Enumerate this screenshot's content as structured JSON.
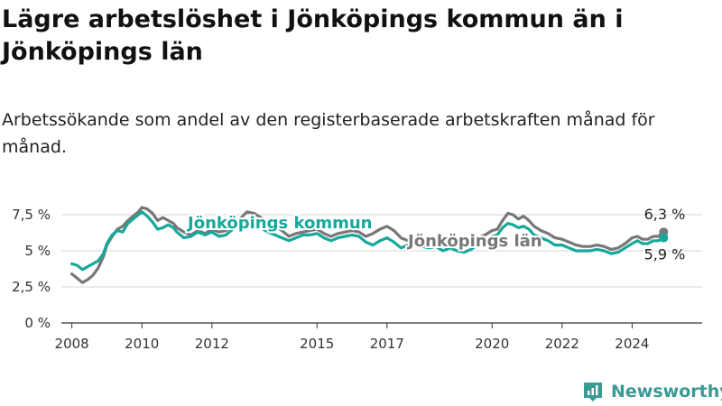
{
  "title": "Lägre arbetslöshet i Jönköpings kommun än i Jönköpings län",
  "subtitle": "Arbetssökande som andel av den registerbaserade arbetskraften månad för månad.",
  "brand": {
    "name": "Newsworthy"
  },
  "chart_data": {
    "type": "line",
    "ylim": [
      0,
      8.5
    ],
    "xlim": [
      2007.7,
      2026.0
    ],
    "y_ticks": [
      {
        "value": 0,
        "label": "0 %"
      },
      {
        "value": 2.5,
        "label": "2,5 %"
      },
      {
        "value": 5,
        "label": "5 %"
      },
      {
        "value": 7.5,
        "label": "7,5 %"
      }
    ],
    "x_ticks": [
      {
        "value": 2008,
        "label": "2008"
      },
      {
        "value": 2010,
        "label": "2010"
      },
      {
        "value": 2012,
        "label": "2012"
      },
      {
        "value": 2015,
        "label": "2015"
      },
      {
        "value": 2017,
        "label": "2017"
      },
      {
        "value": 2020,
        "label": "2020"
      },
      {
        "value": 2022,
        "label": "2022"
      },
      {
        "value": 2024,
        "label": "2024"
      }
    ],
    "grid": true,
    "series": [
      {
        "name": "Jönköpings län",
        "color": "#777777",
        "end_label": "6,3 %",
        "points": [
          [
            2008.0,
            3.4
          ],
          [
            2008.15,
            3.1
          ],
          [
            2008.3,
            2.8
          ],
          [
            2008.45,
            3.0
          ],
          [
            2008.6,
            3.3
          ],
          [
            2008.75,
            3.8
          ],
          [
            2008.9,
            4.6
          ],
          [
            2009.0,
            5.4
          ],
          [
            2009.15,
            6.0
          ],
          [
            2009.3,
            6.5
          ],
          [
            2009.45,
            6.7
          ],
          [
            2009.6,
            7.1
          ],
          [
            2009.75,
            7.4
          ],
          [
            2009.9,
            7.7
          ],
          [
            2010.0,
            8.0
          ],
          [
            2010.15,
            7.9
          ],
          [
            2010.3,
            7.6
          ],
          [
            2010.45,
            7.1
          ],
          [
            2010.6,
            7.3
          ],
          [
            2010.75,
            7.1
          ],
          [
            2010.9,
            6.9
          ],
          [
            2011.0,
            6.6
          ],
          [
            2011.2,
            6.3
          ],
          [
            2011.4,
            6.1
          ],
          [
            2011.6,
            6.4
          ],
          [
            2011.8,
            6.2
          ],
          [
            2012.0,
            6.5
          ],
          [
            2012.2,
            6.3
          ],
          [
            2012.4,
            6.4
          ],
          [
            2012.6,
            6.8
          ],
          [
            2012.8,
            7.2
          ],
          [
            2013.0,
            7.7
          ],
          [
            2013.2,
            7.6
          ],
          [
            2013.4,
            7.3
          ],
          [
            2013.6,
            7.0
          ],
          [
            2013.8,
            6.7
          ],
          [
            2014.0,
            6.4
          ],
          [
            2014.2,
            6.0
          ],
          [
            2014.4,
            6.2
          ],
          [
            2014.6,
            6.3
          ],
          [
            2014.8,
            6.4
          ],
          [
            2015.0,
            6.5
          ],
          [
            2015.2,
            6.2
          ],
          [
            2015.4,
            6.0
          ],
          [
            2015.6,
            6.2
          ],
          [
            2015.8,
            6.3
          ],
          [
            2016.0,
            6.4
          ],
          [
            2016.2,
            6.3
          ],
          [
            2016.4,
            6.0
          ],
          [
            2016.6,
            6.2
          ],
          [
            2016.8,
            6.5
          ],
          [
            2017.0,
            6.7
          ],
          [
            2017.2,
            6.4
          ],
          [
            2017.4,
            5.9
          ],
          [
            2017.6,
            5.7
          ],
          [
            2017.8,
            5.8
          ],
          [
            2018.0,
            5.6
          ],
          [
            2018.2,
            5.5
          ],
          [
            2018.4,
            5.6
          ],
          [
            2018.6,
            5.4
          ],
          [
            2018.8,
            5.5
          ],
          [
            2019.0,
            5.4
          ],
          [
            2019.2,
            5.5
          ],
          [
            2019.4,
            5.6
          ],
          [
            2019.6,
            5.9
          ],
          [
            2019.8,
            6.1
          ],
          [
            2020.0,
            6.4
          ],
          [
            2020.15,
            6.5
          ],
          [
            2020.3,
            7.1
          ],
          [
            2020.45,
            7.6
          ],
          [
            2020.6,
            7.5
          ],
          [
            2020.75,
            7.2
          ],
          [
            2020.9,
            7.4
          ],
          [
            2021.05,
            7.1
          ],
          [
            2021.2,
            6.7
          ],
          [
            2021.4,
            6.4
          ],
          [
            2021.6,
            6.2
          ],
          [
            2021.8,
            5.9
          ],
          [
            2022.0,
            5.8
          ],
          [
            2022.2,
            5.6
          ],
          [
            2022.4,
            5.4
          ],
          [
            2022.6,
            5.3
          ],
          [
            2022.8,
            5.3
          ],
          [
            2023.0,
            5.4
          ],
          [
            2023.2,
            5.3
          ],
          [
            2023.4,
            5.1
          ],
          [
            2023.6,
            5.2
          ],
          [
            2023.8,
            5.5
          ],
          [
            2024.0,
            5.9
          ],
          [
            2024.15,
            6.0
          ],
          [
            2024.3,
            5.8
          ],
          [
            2024.45,
            5.8
          ],
          [
            2024.6,
            6.0
          ],
          [
            2024.75,
            6.0
          ],
          [
            2024.9,
            6.3
          ]
        ]
      },
      {
        "name": "Jönköpings kommun",
        "color": "#17a89a",
        "end_label": "5,9 %",
        "points": [
          [
            2008.0,
            4.1
          ],
          [
            2008.15,
            4.0
          ],
          [
            2008.3,
            3.7
          ],
          [
            2008.45,
            3.9
          ],
          [
            2008.6,
            4.1
          ],
          [
            2008.75,
            4.3
          ],
          [
            2008.9,
            4.8
          ],
          [
            2009.0,
            5.5
          ],
          [
            2009.15,
            6.1
          ],
          [
            2009.3,
            6.4
          ],
          [
            2009.45,
            6.3
          ],
          [
            2009.6,
            6.9
          ],
          [
            2009.75,
            7.2
          ],
          [
            2009.9,
            7.5
          ],
          [
            2010.0,
            7.7
          ],
          [
            2010.15,
            7.4
          ],
          [
            2010.3,
            7.0
          ],
          [
            2010.45,
            6.5
          ],
          [
            2010.6,
            6.6
          ],
          [
            2010.75,
            6.8
          ],
          [
            2010.9,
            6.6
          ],
          [
            2011.0,
            6.3
          ],
          [
            2011.2,
            5.9
          ],
          [
            2011.4,
            6.0
          ],
          [
            2011.6,
            6.3
          ],
          [
            2011.8,
            6.1
          ],
          [
            2012.0,
            6.3
          ],
          [
            2012.2,
            6.0
          ],
          [
            2012.4,
            6.1
          ],
          [
            2012.6,
            6.5
          ],
          [
            2012.8,
            6.7
          ],
          [
            2013.0,
            6.8
          ],
          [
            2013.2,
            6.9
          ],
          [
            2013.4,
            6.6
          ],
          [
            2013.6,
            6.3
          ],
          [
            2013.8,
            6.1
          ],
          [
            2014.0,
            5.9
          ],
          [
            2014.2,
            5.7
          ],
          [
            2014.4,
            5.9
          ],
          [
            2014.6,
            6.1
          ],
          [
            2014.8,
            6.1
          ],
          [
            2015.0,
            6.2
          ],
          [
            2015.2,
            5.9
          ],
          [
            2015.4,
            5.7
          ],
          [
            2015.6,
            5.9
          ],
          [
            2015.8,
            6.0
          ],
          [
            2016.0,
            6.1
          ],
          [
            2016.2,
            6.0
          ],
          [
            2016.4,
            5.6
          ],
          [
            2016.6,
            5.4
          ],
          [
            2016.8,
            5.7
          ],
          [
            2017.0,
            5.9
          ],
          [
            2017.2,
            5.6
          ],
          [
            2017.4,
            5.2
          ],
          [
            2017.6,
            5.4
          ],
          [
            2017.8,
            5.5
          ],
          [
            2018.0,
            5.3
          ],
          [
            2018.2,
            5.2
          ],
          [
            2018.4,
            5.3
          ],
          [
            2018.6,
            5.0
          ],
          [
            2018.8,
            5.2
          ],
          [
            2019.0,
            5.0
          ],
          [
            2019.2,
            4.9
          ],
          [
            2019.4,
            5.1
          ],
          [
            2019.6,
            5.4
          ],
          [
            2019.8,
            5.7
          ],
          [
            2020.0,
            6.0
          ],
          [
            2020.15,
            6.1
          ],
          [
            2020.3,
            6.6
          ],
          [
            2020.45,
            6.9
          ],
          [
            2020.6,
            6.8
          ],
          [
            2020.75,
            6.6
          ],
          [
            2020.9,
            6.7
          ],
          [
            2021.05,
            6.5
          ],
          [
            2021.2,
            6.1
          ],
          [
            2021.4,
            5.9
          ],
          [
            2021.6,
            5.7
          ],
          [
            2021.8,
            5.4
          ],
          [
            2022.0,
            5.4
          ],
          [
            2022.2,
            5.2
          ],
          [
            2022.4,
            5.0
          ],
          [
            2022.6,
            5.0
          ],
          [
            2022.8,
            5.0
          ],
          [
            2023.0,
            5.1
          ],
          [
            2023.2,
            5.0
          ],
          [
            2023.4,
            4.8
          ],
          [
            2023.6,
            4.9
          ],
          [
            2023.8,
            5.2
          ],
          [
            2024.0,
            5.5
          ],
          [
            2024.15,
            5.7
          ],
          [
            2024.3,
            5.5
          ],
          [
            2024.45,
            5.5
          ],
          [
            2024.6,
            5.7
          ],
          [
            2024.75,
            5.7
          ],
          [
            2024.9,
            5.9
          ]
        ]
      }
    ]
  }
}
